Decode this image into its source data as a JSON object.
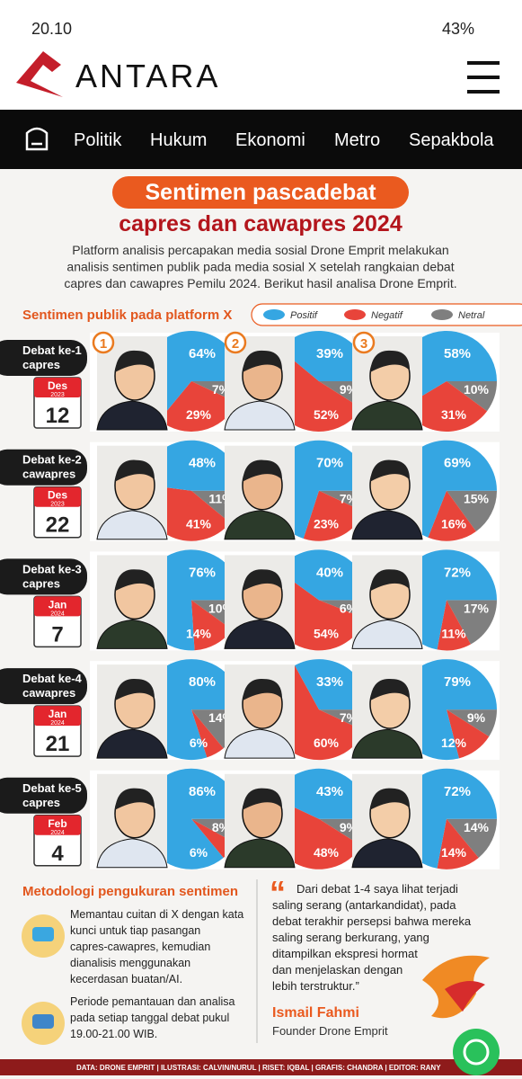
{
  "status_bar": {
    "time": "20.10",
    "battery": "43%"
  },
  "header": {
    "logo": "ANTARA"
  },
  "nav": [
    "Politik",
    "Hukum",
    "Ekonomi",
    "Metro",
    "Sepakbola"
  ],
  "infographic": {
    "title": "Sentimen pascadebat",
    "subtitle": "capres dan cawapres 2024",
    "description": [
      "Platform analisis percapakan media sosial Drone Emprit melakukan",
      "analisis sentimen publik pada media sosial X setelah rangkaian debat",
      "capres dan cawapres Pemilu 2024. Berikut hasil analisa Drone Emprit."
    ],
    "section_label": "Sentimen publik pada platform X",
    "legend": [
      {
        "name": "Positif",
        "color": "#35a6e2"
      },
      {
        "name": "Negatif",
        "color": "#e8443a"
      },
      {
        "name": "Netral",
        "color": "#7f7f7f"
      }
    ],
    "badges": [
      "1",
      "2",
      "3"
    ],
    "rows": [
      {
        "debate": "Debat ke-1",
        "group": "capres",
        "month": "Des",
        "year": "2023",
        "day": "12",
        "candidates": [
          {
            "values": [
              64,
              29,
              7
            ],
            "value_labels": [
              "64%",
              "29%",
              "7%"
            ]
          },
          {
            "values": [
              39,
              52,
              9
            ],
            "value_labels": [
              "39%",
              "52%",
              "9%"
            ]
          },
          {
            "values": [
              58,
              31,
              10
            ],
            "value_labels": [
              "58%",
              "31%",
              "10%"
            ]
          }
        ]
      },
      {
        "debate": "Debat ke-2",
        "group": "cawapres",
        "month": "Des",
        "year": "2023",
        "day": "22",
        "candidates": [
          {
            "values": [
              48,
              41,
              11
            ],
            "value_labels": [
              "48%",
              "41%",
              "11%"
            ]
          },
          {
            "values": [
              70,
              23,
              7
            ],
            "value_labels": [
              "70%",
              "23%",
              "7%"
            ]
          },
          {
            "values": [
              69,
              16,
              15
            ],
            "value_labels": [
              "69%",
              "16%",
              "15%"
            ]
          }
        ]
      },
      {
        "debate": "Debat ke-3",
        "group": "capres",
        "month": "Jan",
        "year": "2024",
        "day": "7",
        "candidates": [
          {
            "values": [
              76,
              14,
              10
            ],
            "value_labels": [
              "76%",
              "14%",
              "10%"
            ]
          },
          {
            "values": [
              40,
              54,
              6
            ],
            "value_labels": [
              "40%",
              "54%",
              "6%"
            ]
          },
          {
            "values": [
              72,
              11,
              17
            ],
            "value_labels": [
              "72%",
              "11%",
              "17%"
            ]
          }
        ]
      },
      {
        "debate": "Debat ke-4",
        "group": "cawapres",
        "month": "Jan",
        "year": "2024",
        "day": "21",
        "candidates": [
          {
            "values": [
              80,
              6,
              14
            ],
            "value_labels": [
              "80%",
              "6%",
              "14%"
            ]
          },
          {
            "values": [
              33,
              60,
              7
            ],
            "value_labels": [
              "33%",
              "60%",
              "7%"
            ]
          },
          {
            "values": [
              79,
              12,
              9
            ],
            "value_labels": [
              "79%",
              "12%",
              "9%"
            ]
          }
        ]
      },
      {
        "debate": "Debat ke-5",
        "group": "capres",
        "month": "Feb",
        "year": "2024",
        "day": "4",
        "candidates": [
          {
            "values": [
              86,
              6,
              8
            ],
            "value_labels": [
              "86%",
              "6%",
              "8%"
            ]
          },
          {
            "values": [
              43,
              48,
              9
            ],
            "value_labels": [
              "43%",
              "48%",
              "9%"
            ]
          },
          {
            "values": [
              72,
              14,
              14
            ],
            "value_labels": [
              "72%",
              "14%",
              "14%"
            ]
          }
        ]
      }
    ],
    "method": {
      "title": "Metodologi pengukuran sentimen",
      "items": [
        [
          "Memantau cuitan di X dengan kata",
          "kunci untuk tiap pasangan",
          "capres-cawapres, kemudian",
          "dianalisis menggunakan",
          "kecerdasan buatan/AI."
        ],
        [
          "Periode pemantauan dan analisa",
          "pada setiap tanggal debat pukul",
          "19.00-21.00 WIB."
        ]
      ]
    },
    "quote": {
      "lines": [
        "Dari debat 1-4 saya lihat terjadi",
        "saling serang (antarkandidat), pada",
        "debat terakhir persepsi bahwa mereka",
        "saling serang berkurang, yang",
        "ditampilkan ekspresi hormat",
        "dan menjelaskan dengan",
        "lebih terstruktur.”"
      ],
      "name": "Ismail Fahmi",
      "role": "Founder Drone Emprit"
    },
    "credits": "DATA: DRONE EMPRIT  |  ILUSTRASI: CALVIN/NURUL  |  RISET: IQBAL  |  GRAFIS: CHANDRA  |  EDITOR: RANY"
  }
}
